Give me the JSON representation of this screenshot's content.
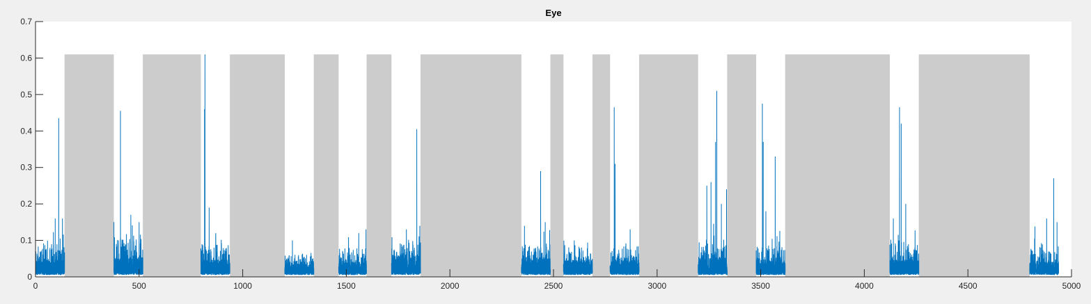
{
  "chart_data": {
    "type": "line",
    "title": "Eye",
    "xlabel": "",
    "ylabel": "",
    "xlim": [
      0,
      5000
    ],
    "ylim": [
      0,
      0.7
    ],
    "xticks": [
      0,
      500,
      1000,
      1500,
      2000,
      2500,
      3000,
      3500,
      4000,
      4500,
      5000
    ],
    "yticks": [
      0,
      0.1,
      0.2,
      0.3,
      0.4,
      0.5,
      0.6,
      0.7
    ],
    "xtick_labels": [
      "0",
      "500",
      "1000",
      "1500",
      "2000",
      "2500",
      "3000",
      "3500",
      "4000",
      "4500",
      "5000"
    ],
    "ytick_labels": [
      "0",
      "0.1",
      "0.2",
      "0.3",
      "0.4",
      "0.5",
      "0.6",
      "0.7"
    ],
    "grid": false,
    "colors": {
      "signal": "#0072bd",
      "shade": "#cccccc",
      "axes_bg": "#ffffff",
      "figure_bg": "#f0f0f0"
    },
    "shaded_regions": {
      "height": 0.61,
      "ranges": [
        [
          140,
          378
        ],
        [
          518,
          798
        ],
        [
          938,
          1203
        ],
        [
          1343,
          1463
        ],
        [
          1598,
          1718
        ],
        [
          1858,
          2345
        ],
        [
          2485,
          2548
        ],
        [
          2688,
          2773
        ],
        [
          2913,
          3198
        ],
        [
          3338,
          3478
        ],
        [
          3618,
          4123
        ],
        [
          4263,
          4798
        ]
      ]
    },
    "series": [
      {
        "segments": [
          {
            "x0": 0,
            "x1": 140,
            "base": 0.04,
            "noise": 0.05,
            "peaks": [
              [
                112,
                0.435
              ],
              [
                95,
                0.16
              ],
              [
                130,
                0.16
              ]
            ]
          },
          {
            "x0": 378,
            "x1": 518,
            "base": 0.045,
            "noise": 0.07,
            "peaks": [
              [
                410,
                0.455
              ],
              [
                460,
                0.17
              ],
              [
                500,
                0.15
              ]
            ]
          },
          {
            "x0": 798,
            "x1": 938,
            "base": 0.04,
            "noise": 0.05,
            "peaks": [
              [
                818,
                0.61
              ],
              [
                816,
                0.46
              ],
              [
                838,
                0.19
              ],
              [
                870,
                0.12
              ]
            ]
          },
          {
            "x0": 1203,
            "x1": 1343,
            "base": 0.03,
            "noise": 0.03,
            "peaks": [
              [
                1240,
                0.1
              ]
            ]
          },
          {
            "x0": 1463,
            "x1": 1598,
            "base": 0.035,
            "noise": 0.04,
            "peaks": [
              [
                1560,
                0.12
              ],
              [
                1595,
                0.13
              ]
            ]
          },
          {
            "x0": 1718,
            "x1": 1858,
            "base": 0.05,
            "noise": 0.05,
            "peaks": [
              [
                1840,
                0.405
              ],
              [
                1790,
                0.13
              ],
              [
                1855,
                0.14
              ]
            ]
          },
          {
            "x0": 2345,
            "x1": 2485,
            "base": 0.045,
            "noise": 0.05,
            "peaks": [
              [
                2438,
                0.29
              ],
              [
                2460,
                0.15
              ],
              [
                2360,
                0.14
              ]
            ]
          },
          {
            "x0": 2548,
            "x1": 2688,
            "base": 0.04,
            "noise": 0.04,
            "peaks": [
              [
                2600,
                0.1
              ]
            ]
          },
          {
            "x0": 2773,
            "x1": 2913,
            "base": 0.04,
            "noise": 0.04,
            "peaks": [
              [
                2793,
                0.465
              ],
              [
                2797,
                0.31
              ],
              [
                2870,
                0.13
              ]
            ]
          },
          {
            "x0": 3198,
            "x1": 3338,
            "base": 0.045,
            "noise": 0.05,
            "peaks": [
              [
                3288,
                0.51
              ],
              [
                3282,
                0.37
              ],
              [
                3240,
                0.25
              ],
              [
                3260,
                0.26
              ],
              [
                3310,
                0.2
              ],
              [
                3335,
                0.24
              ]
            ]
          },
          {
            "x0": 3478,
            "x1": 3618,
            "base": 0.04,
            "noise": 0.05,
            "peaks": [
              [
                3508,
                0.475
              ],
              [
                3512,
                0.37
              ],
              [
                3570,
                0.33
              ],
              [
                3525,
                0.18
              ]
            ]
          },
          {
            "x0": 4123,
            "x1": 4263,
            "base": 0.04,
            "noise": 0.05,
            "peaks": [
              [
                4170,
                0.465
              ],
              [
                4178,
                0.42
              ],
              [
                4200,
                0.2
              ],
              [
                4140,
                0.16
              ]
            ]
          },
          {
            "x0": 4798,
            "x1": 4938,
            "base": 0.035,
            "noise": 0.05,
            "peaks": [
              [
                4914,
                0.27
              ],
              [
                4880,
                0.16
              ],
              [
                4930,
                0.15
              ]
            ]
          }
        ]
      }
    ]
  }
}
